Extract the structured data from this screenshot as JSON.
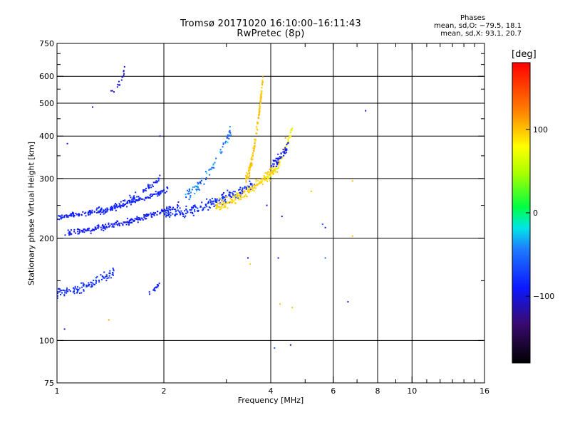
{
  "chart_data": {
    "type": "scatter",
    "title_line1": "Tromsø 20171020 16:10:00–16:11:43",
    "title_line2": "RwPretec (8p)",
    "xlabel": "Frequency [MHz]",
    "ylabel": "Stationary phase Virtual Height [km]",
    "x_scale": "log",
    "y_scale": "log",
    "xlim": [
      1,
      16
    ],
    "ylim": [
      75,
      750
    ],
    "x_ticks": [
      1,
      2,
      4,
      6,
      8,
      10,
      16
    ],
    "x_tick_labels": [
      "1",
      "2",
      "4",
      "6",
      "8",
      "10",
      "16"
    ],
    "x_minor_ticks": [
      3,
      5,
      7,
      9,
      11,
      12,
      13,
      14,
      15
    ],
    "y_ticks": [
      75,
      100,
      200,
      300,
      400,
      500,
      600,
      750
    ],
    "y_tick_labels": [
      "75",
      "100",
      "200",
      "300",
      "400",
      "500",
      "600",
      "750"
    ],
    "y_minor_ticks": [
      150,
      250,
      350,
      450,
      550,
      650,
      700
    ],
    "grid_x": [
      2,
      4,
      6,
      8,
      10
    ],
    "grid_y": [
      100,
      200,
      300,
      400,
      500,
      600
    ],
    "phases": {
      "header": "Phases",
      "o_line": "mean, sd,O: −79.5, 18.1",
      "x_line": "mean, sd,X:  93.1, 20.7"
    },
    "colorbar": {
      "unit": "[deg]",
      "range": [
        -180,
        180
      ],
      "tick_values": [
        100,
        0,
        -100
      ],
      "tick_labels": [
        "100",
        "0",
        "−100"
      ]
    },
    "clusters": [
      {
        "fmin": 1.0,
        "fmax": 2.05,
        "h0": 232,
        "h1": 278,
        "spread": 0.025,
        "n": 190,
        "phase": -88,
        "pspread": 12
      },
      {
        "fmin": 1.05,
        "fmax": 2.2,
        "h0": 208,
        "h1": 250,
        "spread": 0.03,
        "n": 200,
        "phase": -92,
        "pspread": 12
      },
      {
        "fmin": 1.3,
        "fmax": 1.95,
        "h0": 240,
        "h1": 300,
        "spread": 0.035,
        "n": 80,
        "phase": -85,
        "pspread": 14
      },
      {
        "fmin": 2.0,
        "fmax": 3.6,
        "h0": 235,
        "h1": 290,
        "spread": 0.05,
        "n": 200,
        "phase": -80,
        "pspread": 16
      },
      {
        "fmin": 2.3,
        "fmax": 3.1,
        "h0": 270,
        "h1": 420,
        "spread": 0.06,
        "n": 80,
        "phase": -50,
        "pspread": 40
      },
      {
        "fmin": 2.8,
        "fmax": 4.2,
        "h0": 250,
        "h1": 330,
        "spread": 0.05,
        "n": 160,
        "phase": 95,
        "pspread": 15
      },
      {
        "fmin": 3.4,
        "fmax": 3.8,
        "h0": 300,
        "h1": 580,
        "spread": 0.05,
        "n": 130,
        "phase": 100,
        "pspread": 16
      },
      {
        "fmin": 3.9,
        "fmax": 4.6,
        "h0": 300,
        "h1": 420,
        "spread": 0.05,
        "n": 70,
        "phase": 85,
        "pspread": 30
      },
      {
        "fmin": 4.0,
        "fmax": 4.5,
        "h0": 330,
        "h1": 380,
        "spread": 0.05,
        "n": 50,
        "phase": -90,
        "pspread": 12
      },
      {
        "fmin": 1.0,
        "fmax": 1.45,
        "h0": 138,
        "h1": 160,
        "spread": 0.05,
        "n": 110,
        "phase": -80,
        "pspread": 16
      },
      {
        "fmin": 1.42,
        "fmax": 1.55,
        "h0": 540,
        "h1": 620,
        "spread": 0.05,
        "n": 16,
        "phase": -105,
        "pspread": 6
      },
      {
        "fmin": 1.8,
        "fmax": 1.95,
        "h0": 138,
        "h1": 148,
        "spread": 0.02,
        "n": 14,
        "phase": -92,
        "pspread": 10
      }
    ],
    "points": [
      {
        "f": 1.05,
        "h": 108,
        "p": -110
      },
      {
        "f": 1.4,
        "h": 115,
        "p": 110
      },
      {
        "f": 1.26,
        "h": 487,
        "p": -115
      },
      {
        "f": 1.07,
        "h": 380,
        "p": -100
      },
      {
        "f": 3.45,
        "h": 175,
        "p": -90
      },
      {
        "f": 3.5,
        "h": 168,
        "p": 95
      },
      {
        "f": 4.2,
        "h": 175,
        "p": -90
      },
      {
        "f": 4.25,
        "h": 128,
        "p": 100
      },
      {
        "f": 4.3,
        "h": 232,
        "p": -100
      },
      {
        "f": 4.55,
        "h": 97,
        "p": -120
      },
      {
        "f": 4.6,
        "h": 125,
        "p": 100
      },
      {
        "f": 5.6,
        "h": 220,
        "p": -60
      },
      {
        "f": 5.7,
        "h": 215,
        "p": -95
      },
      {
        "f": 5.7,
        "h": 175,
        "p": -50
      },
      {
        "f": 6.6,
        "h": 130,
        "p": -105
      },
      {
        "f": 6.8,
        "h": 295,
        "p": 100
      },
      {
        "f": 6.8,
        "h": 203,
        "p": 100
      },
      {
        "f": 7.4,
        "h": 475,
        "p": -100
      },
      {
        "f": 3.9,
        "h": 250,
        "p": -90
      },
      {
        "f": 4.1,
        "h": 95,
        "p": -60
      },
      {
        "f": 1.95,
        "h": 400,
        "p": -110
      },
      {
        "f": 5.2,
        "h": 275,
        "p": 100
      },
      {
        "f": 1.55,
        "h": 640,
        "p": -100
      },
      {
        "f": 4.4,
        "h": 395,
        "p": 110
      }
    ]
  }
}
